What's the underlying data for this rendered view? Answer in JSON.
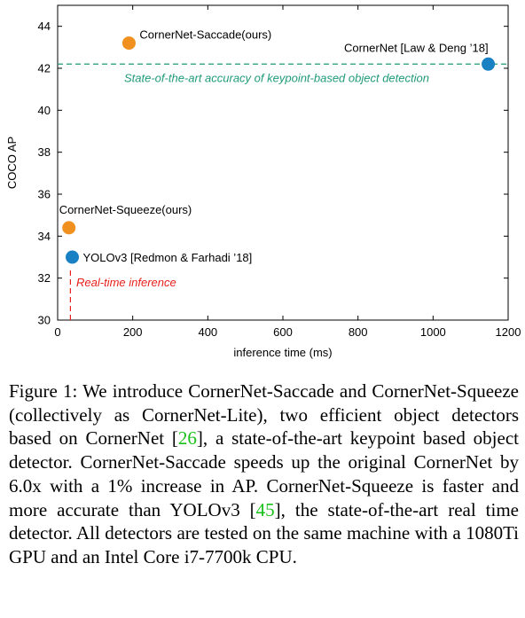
{
  "chart_data": {
    "type": "scatter",
    "xlabel": "inference time (ms)",
    "ylabel": "COCO AP",
    "xlim": [
      0,
      1200
    ],
    "ylim": [
      30,
      45
    ],
    "xticks": [
      0,
      200,
      400,
      600,
      800,
      1000,
      1200
    ],
    "yticks": [
      30,
      32,
      34,
      36,
      38,
      40,
      42,
      44
    ],
    "grid": false,
    "points": [
      {
        "label": "CornerNet-Saccade(ours)",
        "x": 190,
        "y": 43.2,
        "color": "#f0901e"
      },
      {
        "label": "CornerNet [Law & Deng ’18]",
        "x": 1147,
        "y": 42.2,
        "color": "#1a80c4"
      },
      {
        "label": "CornerNet-Squeeze(ours)",
        "x": 30,
        "y": 34.4,
        "color": "#f0901e"
      },
      {
        "label": "YOLOv3 [Redmon & Farhadi ’18]",
        "x": 39,
        "y": 33.0,
        "color": "#1a80c4"
      }
    ],
    "reference_lines": [
      {
        "orientation": "horizontal",
        "value": 42.2,
        "text": "State-of-the-art accuracy of keypoint-based object detection",
        "color": "#1f9a78"
      },
      {
        "orientation": "vertical",
        "value": 34,
        "text": "Real-time inference",
        "color": "#e8201c"
      }
    ]
  },
  "caption": {
    "prefix": "Figure 1: We introduce CornerNet-Saccade and CornerNet-Squeeze (collectively as CornerNet-Lite), two efficient object detectors based on CornerNet [",
    "cite1": "26",
    "mid": "], a state-of-the-art keypoint based object detector. CornerNet-Saccade speeds up the original CornerNet by 6.0x with a 1% increase in AP. CornerNet-Squeeze is faster and more accurate than YOLOv3 [",
    "cite2": "45",
    "suffix": "], the state-of-the-art real time detector. All detectors are tested on the same machine with a 1080Ti GPU and an Intel Core i7-7700k CPU."
  }
}
